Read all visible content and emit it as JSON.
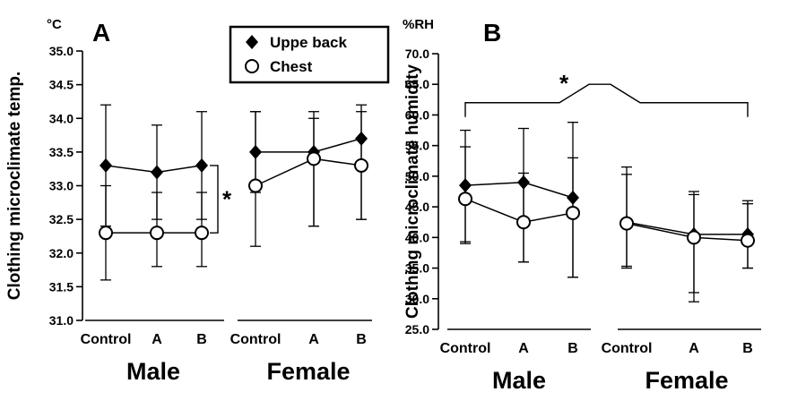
{
  "figure": {
    "background": "#ffffff",
    "ink": "#000000"
  },
  "legend": {
    "entries": [
      {
        "label": "Uppe back",
        "marker": "filled-diamond"
      },
      {
        "label": "Chest",
        "marker": "open-circle"
      }
    ]
  },
  "chart_data": [
    {
      "id": "A",
      "type": "line",
      "panel_label": "A",
      "unit_label": "°C",
      "ylabel": "Clothing microclimate temp.",
      "ylim": [
        31.0,
        35.0
      ],
      "yticks": [
        35.0,
        34.5,
        34.0,
        33.5,
        33.0,
        32.5,
        32.0,
        31.5,
        31.0
      ],
      "groups": [
        "Male",
        "Female"
      ],
      "categories": [
        "Control",
        "A",
        "B"
      ],
      "has_legend": true,
      "series": [
        {
          "name": "Uppe back",
          "marker": "filled-diamond",
          "values": [
            33.3,
            33.2,
            33.3,
            33.5,
            33.5,
            33.7
          ],
          "err_up": [
            0.9,
            0.7,
            0.8,
            0.6,
            0.6,
            0.5
          ],
          "err_dn": [
            0.9,
            0.7,
            0.8,
            0.6,
            1.1,
            1.2
          ]
        },
        {
          "name": "Chest",
          "marker": "open-circle",
          "values": [
            32.3,
            32.3,
            32.3,
            33.0,
            33.4,
            33.3
          ],
          "err_up": [
            0.7,
            0.6,
            0.6,
            1.1,
            0.6,
            0.8
          ],
          "err_dn": [
            0.7,
            0.5,
            0.5,
            0.9,
            1.0,
            0.8
          ]
        }
      ],
      "significance": {
        "style": "vertical-bracket",
        "label": "*",
        "at_group": "Male",
        "at_category": "B",
        "from_value": 33.3,
        "to_value": 32.3
      }
    },
    {
      "id": "B",
      "type": "line",
      "panel_label": "B",
      "unit_label": "%RH",
      "ylabel": "Clothing microclimate humidity",
      "ylim": [
        25.0,
        70.0
      ],
      "yticks": [
        70.0,
        65.0,
        60.0,
        55.0,
        50.0,
        45.0,
        40.0,
        35.0,
        30.0,
        25.0
      ],
      "groups": [
        "Male",
        "Female"
      ],
      "categories": [
        "Control",
        "A",
        "B"
      ],
      "has_legend": false,
      "series": [
        {
          "name": "Uppe back",
          "marker": "filled-diamond",
          "values": [
            48.5,
            49.0,
            46.5,
            42.5,
            40.5,
            40.5
          ],
          "err_up": [
            9.0,
            8.8,
            12.3,
            9.0,
            7.0,
            5.5
          ],
          "err_dn": [
            9.5,
            13.0,
            13.0,
            7.5,
            11.0,
            5.5
          ]
        },
        {
          "name": "Chest",
          "marker": "open-circle",
          "values": [
            46.3,
            42.5,
            44.0,
            42.3,
            40.0,
            39.5
          ],
          "err_up": [
            8.5,
            8.0,
            9.0,
            8.0,
            7.0,
            6.0
          ],
          "err_dn": [
            7.0,
            6.5,
            10.5,
            7.0,
            9.0,
            4.5
          ]
        }
      ],
      "significance": {
        "style": "bridge",
        "label": "*",
        "between_groups": [
          "Male",
          "Female"
        ],
        "level": 62.0,
        "peak": 65.0
      }
    }
  ]
}
